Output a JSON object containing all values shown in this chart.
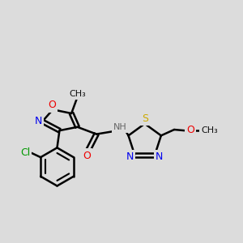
{
  "bg_color": "#dcdcdc",
  "bond_color": "#000000",
  "lw": 1.8,
  "atom_colors": {
    "N": "#0000ee",
    "O": "#ee0000",
    "S": "#ccaa00",
    "Cl": "#009900",
    "H": "#666666"
  },
  "fs": 8.5,
  "figsize": [
    3.0,
    3.0
  ],
  "dpi": 100,
  "xlim": [
    0,
    10
  ],
  "ylim": [
    0,
    10
  ]
}
